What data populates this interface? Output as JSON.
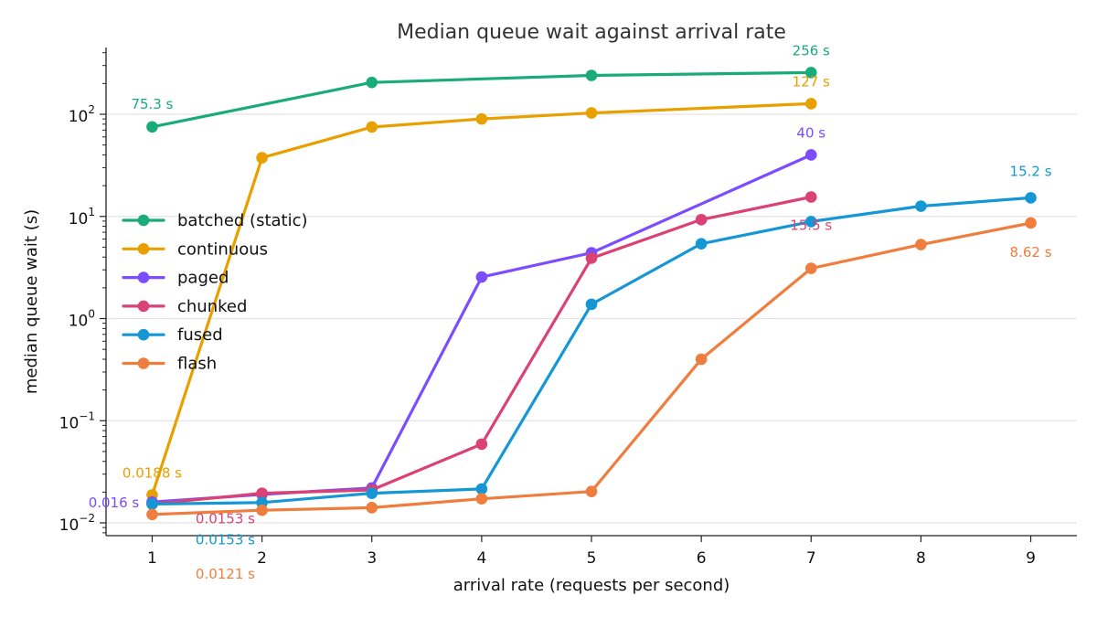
{
  "chart_data": {
    "type": "line",
    "title": "Median queue wait against arrival rate",
    "xlabel": "arrival rate (requests per second)",
    "ylabel": "median queue wait (s)",
    "x_ticks": [
      1,
      2,
      3,
      4,
      5,
      6,
      7,
      8,
      9
    ],
    "xlim": [
      0.58,
      9.42
    ],
    "y_scale": "log",
    "ylim": [
      0.0075,
      450
    ],
    "y_major_ticks": [
      0.01,
      0.1,
      1,
      10,
      100
    ],
    "y_tick_labels": [
      {
        "base": "10",
        "exp": "−2"
      },
      {
        "base": "10",
        "exp": "−1"
      },
      {
        "base": "10",
        "exp": "0"
      },
      {
        "base": "10",
        "exp": "1"
      },
      {
        "base": "10",
        "exp": "2"
      }
    ],
    "grid": "horizontal",
    "legend_position": "center-left",
    "series": [
      {
        "name": "batched (static)",
        "color": "#1aab7a",
        "x": [
          1,
          3,
          5,
          7
        ],
        "y": [
          75.3,
          205,
          240,
          256
        ]
      },
      {
        "name": "continuous",
        "color": "#e8a000",
        "x": [
          1,
          2,
          3,
          4,
          5,
          7
        ],
        "y": [
          0.0188,
          37.5,
          75,
          90,
          103,
          127
        ]
      },
      {
        "name": "paged",
        "color": "#7b4dff",
        "x": [
          1,
          2,
          3,
          4,
          5,
          7
        ],
        "y": [
          0.016,
          0.019,
          0.022,
          2.55,
          4.4,
          40
        ]
      },
      {
        "name": "chunked",
        "color": "#db4274",
        "x": [
          1,
          2,
          3,
          4,
          5,
          6,
          7
        ],
        "y": [
          0.0153,
          0.0195,
          0.021,
          0.059,
          3.9,
          9.3,
          15.5
        ]
      },
      {
        "name": "fused",
        "color": "#1497d4",
        "x": [
          1,
          2,
          3,
          4,
          5,
          6,
          7,
          8,
          9
        ],
        "y": [
          0.0153,
          0.0158,
          0.0195,
          0.0215,
          1.38,
          5.4,
          8.9,
          12.6,
          15.2
        ]
      },
      {
        "name": "flash",
        "color": "#ef7d3e",
        "x": [
          1,
          2,
          3,
          4,
          5,
          6,
          7,
          8,
          9
        ],
        "y": [
          0.0121,
          0.0133,
          0.0141,
          0.0172,
          0.0203,
          0.4,
          3.1,
          5.3,
          8.62
        ]
      }
    ],
    "annotations": [
      {
        "text": "75.3 s",
        "series": "batched (static)",
        "x": 1,
        "y": 75.3
      },
      {
        "text": "256 s",
        "series": "batched (static)",
        "x": 7,
        "y": 256
      },
      {
        "text": "0.0188 s",
        "series": "continuous",
        "x": 1,
        "y": 0.0188
      },
      {
        "text": "127 s",
        "series": "continuous",
        "x": 7,
        "y": 127
      },
      {
        "text": "0.016 s",
        "series": "paged",
        "x": 1,
        "y": 0.016
      },
      {
        "text": "40 s",
        "series": "paged",
        "x": 7,
        "y": 40
      },
      {
        "text": "0.0153 s",
        "series": "chunked",
        "x": 1,
        "y": 0.0153
      },
      {
        "text": "15.5 s",
        "series": "chunked",
        "x": 7,
        "y": 15.5
      },
      {
        "text": "0.0153 s",
        "series": "fused",
        "x": 1,
        "y": 0.0153
      },
      {
        "text": "15.2 s",
        "series": "fused",
        "x": 9,
        "y": 15.2
      },
      {
        "text": "0.0121 s",
        "series": "flash",
        "x": 1,
        "y": 0.0121
      },
      {
        "text": "8.62 s",
        "series": "flash",
        "x": 9,
        "y": 8.62
      }
    ]
  }
}
